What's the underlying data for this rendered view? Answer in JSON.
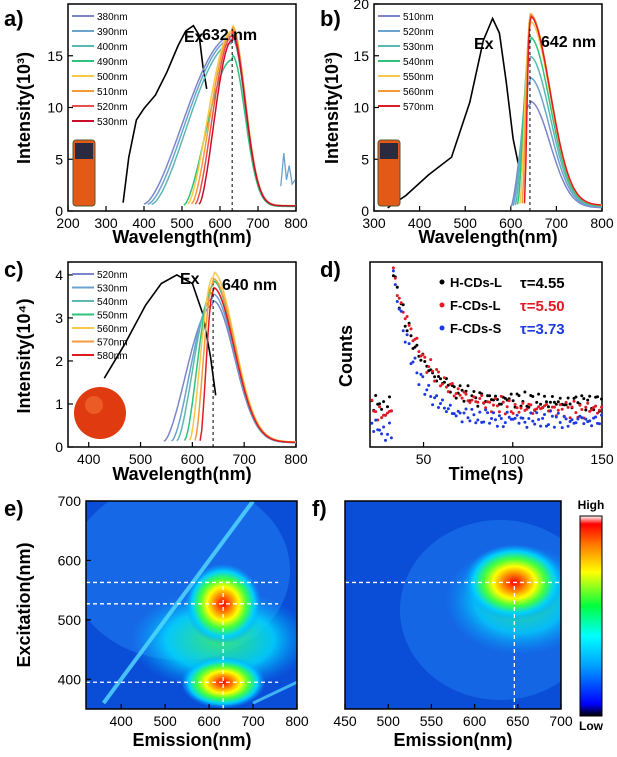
{
  "chart_data": [
    {
      "panel": "a)",
      "type": "line",
      "xlabel": "Wavelength(nm)",
      "ylabel": "Intensity(10³)",
      "xlim": [
        200,
        800
      ],
      "ylim": [
        0,
        20
      ],
      "xticks": [
        200,
        300,
        400,
        500,
        600,
        700,
        800
      ],
      "yticks": [
        0,
        5,
        10,
        15
      ],
      "annotations": [
        "Ex",
        "632 nm"
      ],
      "peak_line_x": 632,
      "legend_position": "top-left",
      "excitation": {
        "name": "Ex",
        "color": "#000000",
        "x": [
          345,
          360,
          380,
          400,
          430,
          460,
          490,
          510,
          530,
          545,
          555,
          565
        ],
        "y": [
          0.8,
          5.2,
          8.8,
          9.9,
          11.2,
          13.4,
          16.0,
          17.4,
          17.9,
          17.0,
          14.0,
          11.8
        ]
      },
      "emission_peak_x": 632,
      "series": [
        {
          "name": "380nm",
          "color": "#7b86c9",
          "start": 400,
          "peak": 16.9
        },
        {
          "name": "390nm",
          "color": "#6aa3cf",
          "start": 410,
          "peak": 16.6
        },
        {
          "name": "400nm",
          "color": "#5cb7b2",
          "start": 420,
          "peak": 16.2
        },
        {
          "name": "490nm",
          "color": "#2ec27e",
          "start": 505,
          "peak": 14.6
        },
        {
          "name": "500nm",
          "color": "#f7c948",
          "start": 515,
          "peak": 17.4
        },
        {
          "name": "510nm",
          "color": "#f49a3a",
          "start": 525,
          "peak": 17.2
        },
        {
          "name": "520nm",
          "color": "#e8504a",
          "start": 535,
          "peak": 16.9
        },
        {
          "name": "530nm",
          "color": "#c8102e",
          "start": 545,
          "peak": 16.5
        }
      ]
    },
    {
      "panel": "b)",
      "type": "line",
      "xlabel": "Wavelength(nm)",
      "ylabel": "Intensity(10³)",
      "xlim": [
        300,
        800
      ],
      "ylim": [
        0,
        20
      ],
      "xticks": [
        300,
        400,
        500,
        600,
        700,
        800
      ],
      "yticks": [
        0,
        5,
        10,
        15,
        20
      ],
      "annotations": [
        "Ex",
        "642 nm"
      ],
      "peak_line_x": 642,
      "legend_position": "top-left",
      "excitation": {
        "name": "Ex",
        "color": "#000000",
        "x": [
          330,
          370,
          420,
          470,
          510,
          540,
          560,
          575,
          590,
          605,
          620
        ],
        "y": [
          0.3,
          1.5,
          3.5,
          5.2,
          10.5,
          16.5,
          18.6,
          17.2,
          12.5,
          7.0,
          3.8
        ]
      },
      "emission_peak_x": 642,
      "series": [
        {
          "name": "510nm",
          "color": "#7b86c9",
          "start": 600,
          "peak": 10.3
        },
        {
          "name": "520nm",
          "color": "#6aa3cf",
          "start": 605,
          "peak": 12.5
        },
        {
          "name": "530nm",
          "color": "#5cb7b2",
          "start": 610,
          "peak": 14.5
        },
        {
          "name": "540nm",
          "color": "#2ec27e",
          "start": 615,
          "peak": 16.3
        },
        {
          "name": "550nm",
          "color": "#f7c948",
          "start": 620,
          "peak": 17.8
        },
        {
          "name": "560nm",
          "color": "#f49a3a",
          "start": 625,
          "peak": 18.5
        },
        {
          "name": "570nm",
          "color": "#e01b24",
          "start": 630,
          "peak": 18.3
        }
      ]
    },
    {
      "panel": "c)",
      "type": "line",
      "xlabel": "Wavelength(nm)",
      "ylabel": "Intensity(10⁴)",
      "xlim": [
        360,
        800
      ],
      "ylim": [
        0,
        4.3
      ],
      "xticks": [
        400,
        500,
        600,
        700,
        800
      ],
      "yticks": [
        0,
        1,
        2,
        3,
        4
      ],
      "annotations": [
        "Ex",
        "640 nm"
      ],
      "peak_line_x": 640,
      "legend_position": "top-left",
      "excitation": {
        "name": "Ex",
        "color": "#000000",
        "x": [
          430,
          470,
          510,
          540,
          570,
          600,
          620,
          635,
          645
        ],
        "y": [
          1.6,
          2.4,
          3.3,
          3.8,
          4.0,
          3.8,
          3.1,
          2.1,
          1.2
        ]
      },
      "emission_peak_x": 640,
      "series": [
        {
          "name": "520nm",
          "color": "#7b86c9",
          "start": 545,
          "peak": 3.3
        },
        {
          "name": "530nm",
          "color": "#6aa3cf",
          "start": 560,
          "peak": 3.45
        },
        {
          "name": "540nm",
          "color": "#5cb7b2",
          "start": 570,
          "peak": 3.6
        },
        {
          "name": "550nm",
          "color": "#2ec27e",
          "start": 585,
          "peak": 3.75
        },
        {
          "name": "560nm",
          "color": "#f7c948",
          "start": 595,
          "peak": 3.95
        },
        {
          "name": "570nm",
          "color": "#f49a3a",
          "start": 605,
          "peak": 3.8
        },
        {
          "name": "580nm",
          "color": "#e01b24",
          "start": 615,
          "peak": 3.6
        }
      ]
    },
    {
      "panel": "d)",
      "type": "scatter",
      "xlabel": "Time(ns)",
      "ylabel": "Counts",
      "xlim": [
        20,
        150
      ],
      "xticks": [
        50,
        100,
        150
      ],
      "legend_position": "top-right",
      "series": [
        {
          "name": "H-CDs-L",
          "tau_label": "τ=4.55",
          "color": "#000000",
          "tau": 4.55,
          "baseline": 0.2
        },
        {
          "name": "F-CDs-L",
          "tau_label": "τ=5.50",
          "color": "#e01b24",
          "tau": 5.5,
          "baseline": 0.15
        },
        {
          "name": "F-CDs-S",
          "tau_label": "τ=3.73",
          "color": "#1c39e0",
          "tau": 3.73,
          "baseline": 0.05
        }
      ]
    },
    {
      "panel": "e)",
      "type": "heatmap",
      "xlabel": "Emission(nm)",
      "ylabel": "Excitation(nm)",
      "xlim": [
        320,
        800
      ],
      "ylim": [
        350,
        700
      ],
      "xticks": [
        400,
        500,
        600,
        700,
        800
      ],
      "yticks": [
        400,
        500,
        600,
        700
      ],
      "markers_x": [
        632
      ],
      "markers_y": [
        395,
        527,
        563
      ],
      "peaks": [
        {
          "em": 632,
          "ex": 527,
          "value": 1.0
        },
        {
          "em": 632,
          "ex": 395,
          "value": 0.95
        }
      ]
    },
    {
      "panel": "f)",
      "type": "heatmap",
      "xlabel": "Emission(nm)",
      "ylabel": "",
      "xlim": [
        450,
        700
      ],
      "ylim": [
        350,
        700
      ],
      "xticks": [
        450,
        500,
        550,
        600,
        650,
        700
      ],
      "markers_x": [
        646
      ],
      "markers_y": [
        563
      ],
      "peaks": [
        {
          "em": 646,
          "ex": 563,
          "value": 1.0
        }
      ]
    }
  ],
  "colorbar": {
    "high": "High",
    "low": "Low",
    "colors": [
      "#000000",
      "#0000ff",
      "#00a0ff",
      "#00ffff",
      "#00ff40",
      "#ffff00",
      "#ff8000",
      "#ff0000",
      "#ffffff"
    ]
  }
}
